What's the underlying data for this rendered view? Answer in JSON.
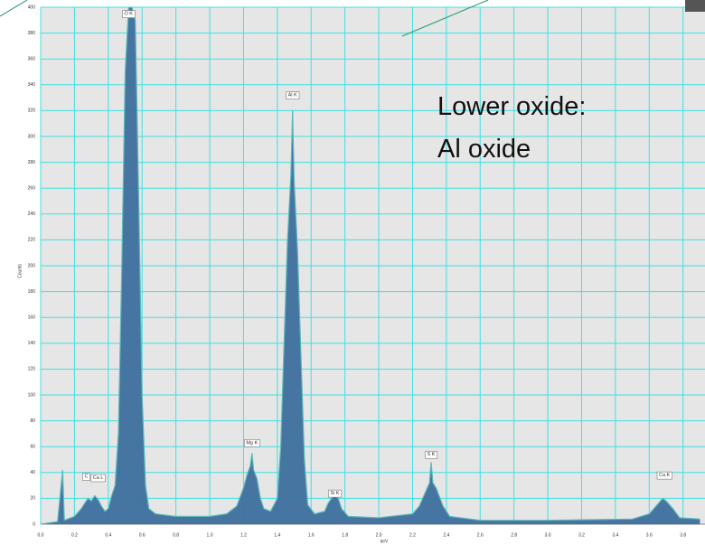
{
  "chart_data": {
    "type": "area",
    "y_label": "Counts",
    "x_label": "keV",
    "annotation": [
      "Lower oxide:",
      "Al oxide"
    ],
    "color": "#3d6f9e",
    "line_color": "#5cb8b8",
    "background": "#e6e6e6",
    "grid": true,
    "xlim": [
      0,
      3.93
    ],
    "ylim": [
      0,
      400
    ],
    "xticks": [
      {
        "value": 0,
        "label": "0.0"
      },
      0.2,
      0.4,
      0.6,
      0.8,
      {
        "value": 1,
        "label": "1.0"
      },
      1.2,
      1.4,
      1.6,
      1.8,
      {
        "value": 2,
        "label": "2.0"
      },
      2.2,
      2.4,
      2.6,
      2.8,
      {
        "value": 3,
        "label": "3.0"
      },
      3.2,
      3.4,
      3.6,
      3.8
    ],
    "yticks": [
      0,
      20,
      40,
      60,
      80,
      100,
      120,
      140,
      160,
      180,
      200,
      220,
      240,
      260,
      280,
      300,
      320,
      340,
      360,
      380,
      400
    ],
    "x": [
      0.0,
      0.1,
      0.13,
      0.14,
      0.2,
      0.24,
      0.26,
      0.28,
      0.3,
      0.32,
      0.34,
      0.36,
      0.38,
      0.4,
      0.42,
      0.44,
      0.46,
      0.48,
      0.5,
      0.52,
      0.54,
      0.56,
      0.58,
      0.6,
      0.62,
      0.64,
      0.68,
      0.8,
      1.0,
      1.1,
      1.16,
      1.2,
      1.22,
      1.24,
      1.25,
      1.26,
      1.28,
      1.3,
      1.32,
      1.36,
      1.4,
      1.42,
      1.44,
      1.46,
      1.48,
      1.49,
      1.5,
      1.52,
      1.54,
      1.56,
      1.58,
      1.62,
      1.68,
      1.7,
      1.72,
      1.74,
      1.76,
      1.78,
      1.82,
      2.0,
      2.2,
      2.24,
      2.28,
      2.3,
      2.31,
      2.32,
      2.34,
      2.38,
      2.42,
      2.6,
      3.0,
      3.5,
      3.6,
      3.64,
      3.68,
      3.7,
      3.74,
      3.78,
      3.9
    ],
    "values": [
      0,
      2,
      42,
      3,
      6,
      12,
      16,
      20,
      18,
      22,
      19,
      14,
      10,
      12,
      22,
      30,
      70,
      200,
      350,
      400,
      400,
      390,
      250,
      100,
      30,
      12,
      8,
      6,
      6,
      8,
      14,
      28,
      38,
      45,
      55,
      42,
      35,
      20,
      12,
      10,
      20,
      60,
      140,
      220,
      270,
      320,
      265,
      210,
      130,
      50,
      15,
      8,
      10,
      16,
      20,
      22,
      20,
      12,
      6,
      5,
      8,
      14,
      26,
      32,
      48,
      32,
      28,
      14,
      6,
      3,
      3,
      4,
      8,
      14,
      20,
      18,
      12,
      5,
      4
    ],
    "peaks": [
      {
        "label": "O K",
        "x": 0.52,
        "y": 395
      },
      {
        "label": "Al K",
        "x": 1.49,
        "y": 332
      },
      {
        "label": "Mg K",
        "x": 1.25,
        "y": 63
      },
      {
        "label": "Si K",
        "x": 1.74,
        "y": 24
      },
      {
        "label": "S K",
        "x": 2.31,
        "y": 54
      },
      {
        "label": "C",
        "x": 0.27,
        "y": 37
      },
      {
        "label": "Ca L",
        "x": 0.34,
        "y": 36
      },
      {
        "label": "Ca K",
        "x": 3.69,
        "y": 38
      }
    ]
  }
}
